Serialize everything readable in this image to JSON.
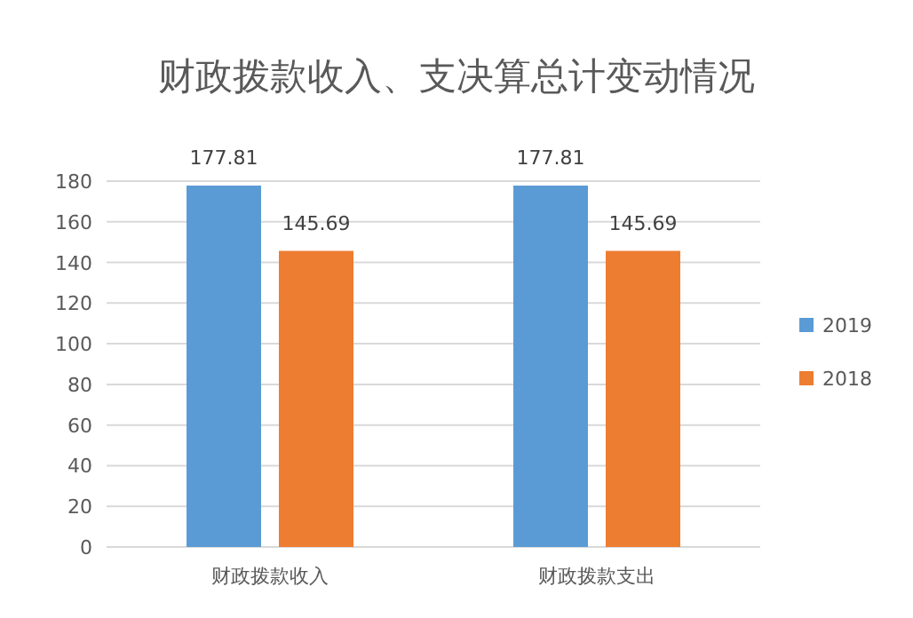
{
  "chart_data": {
    "type": "bar",
    "title": "财政拨款收入、支决算总计变动情况",
    "categories": [
      "财政拨款收入",
      "财政拨款支出"
    ],
    "series": [
      {
        "name": "2019",
        "color": "#5b9bd5",
        "values": [
          177.81,
          177.81
        ]
      },
      {
        "name": "2018",
        "color": "#ed7d31",
        "values": [
          145.69,
          145.69
        ]
      }
    ],
    "ylim": [
      0,
      180
    ],
    "yticks": [
      0,
      20,
      40,
      60,
      80,
      100,
      120,
      140,
      160,
      180
    ],
    "grid": "y",
    "legend": "right",
    "data_labels": true
  }
}
